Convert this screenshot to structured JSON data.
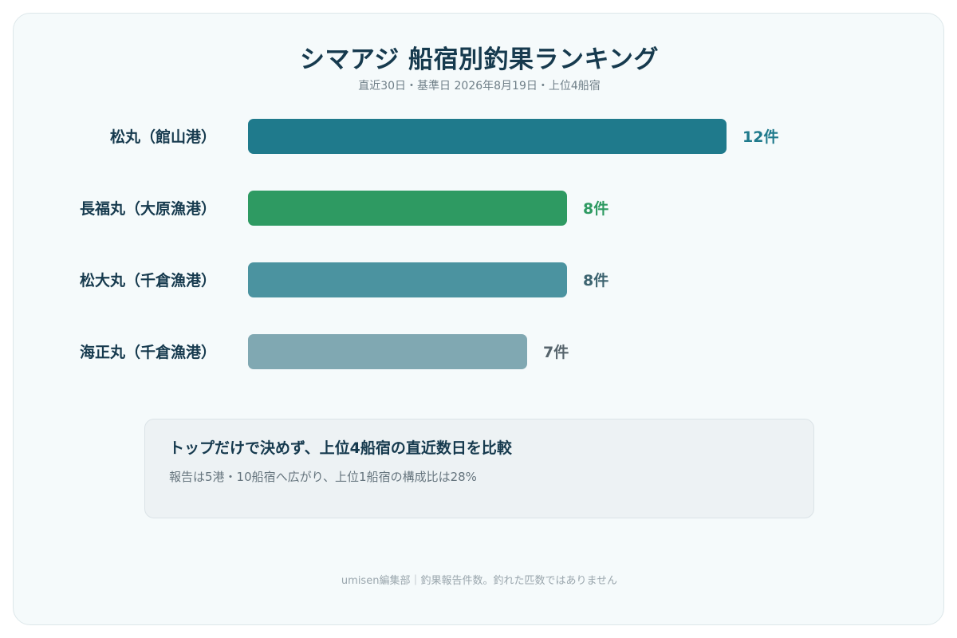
{
  "header": {
    "title": "シマアジ 船宿別釣果ランキング",
    "subtitle": "直近30日・基準日 2026年8月19日・上位4船宿"
  },
  "chart_data": {
    "type": "bar",
    "orientation": "horizontal",
    "categories": [
      "松丸（館山港）",
      "長福丸（大原漁港）",
      "松大丸（千倉漁港）",
      "海正丸（千倉漁港）"
    ],
    "values": [
      12,
      8,
      8,
      7
    ],
    "value_labels": [
      "12件",
      "8件",
      "8件",
      "7件"
    ],
    "unit": "件",
    "colors": [
      "#1f7a8c",
      "#2e9a62",
      "#4b93a0",
      "#80a8b2"
    ],
    "label_colors": [
      "#1f7a8c",
      "#2e9a62",
      "#3d6470",
      "#56646c"
    ],
    "xlim": [
      0,
      12
    ],
    "grid": false,
    "legend": "none"
  },
  "note": {
    "title": "トップだけで決めず、上位4船宿の直近数日を比較",
    "body": "報告は5港・10船宿へ広がり、上位1船宿の構成比は28%"
  },
  "footer": {
    "text": "umisen編集部｜釣果報告件数。釣れた匹数ではありません"
  },
  "colors": {
    "card_background": "#f5fafb",
    "title": "#163a4e",
    "muted": "#6f7f88"
  }
}
